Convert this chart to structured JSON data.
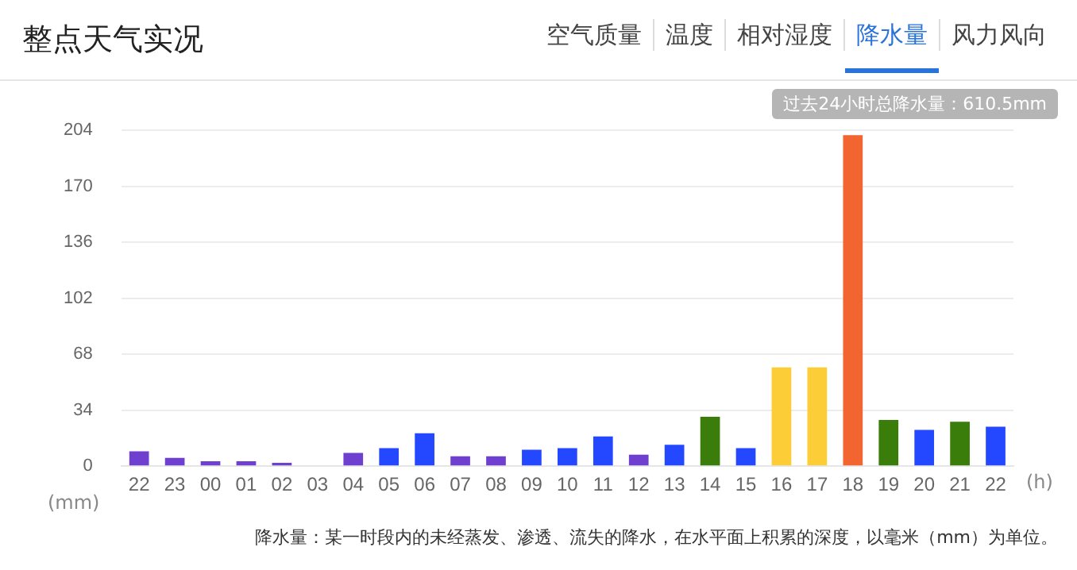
{
  "chart_data": {
    "type": "bar",
    "title": "整点天气实况",
    "xlabel": "(h)",
    "ylabel": "(mm)",
    "categories": [
      "22",
      "23",
      "00",
      "01",
      "02",
      "03",
      "04",
      "05",
      "06",
      "07",
      "08",
      "09",
      "10",
      "11",
      "12",
      "13",
      "14",
      "15",
      "16",
      "17",
      "18",
      "19",
      "20",
      "21",
      "22"
    ],
    "values": [
      9,
      5,
      3,
      3,
      2,
      0,
      8,
      11,
      20,
      6,
      6,
      10,
      11,
      18,
      7,
      13,
      30,
      11,
      60,
      60,
      201,
      28,
      22,
      27,
      24
    ],
    "colors": [
      "#6f3fd0",
      "#6f3fd0",
      "#6f3fd0",
      "#6f3fd0",
      "#6f3fd0",
      "#6f3fd0",
      "#6f3fd0",
      "#2448ff",
      "#2448ff",
      "#6f3fd0",
      "#6f3fd0",
      "#2448ff",
      "#2448ff",
      "#2448ff",
      "#6f3fd0",
      "#2448ff",
      "#3a7d0a",
      "#2448ff",
      "#fccd36",
      "#fccd36",
      "#f26430",
      "#3a7d0a",
      "#2448ff",
      "#3a7d0a",
      "#2448ff"
    ],
    "ylim": [
      0,
      204
    ],
    "yticks": [
      0,
      34,
      68,
      102,
      136,
      170,
      204
    ],
    "grid": "y",
    "legend": false,
    "annotations": [
      "空气质量",
      "温度",
      "相对湿度",
      "降水量",
      "风力风向",
      "过去24小时总降水量：610.5mm",
      "降水量：某一时段内的未经蒸发、渗透、流失的降水，在水平面上积累的深度，以毫米（mm）为单位。"
    ]
  }
}
